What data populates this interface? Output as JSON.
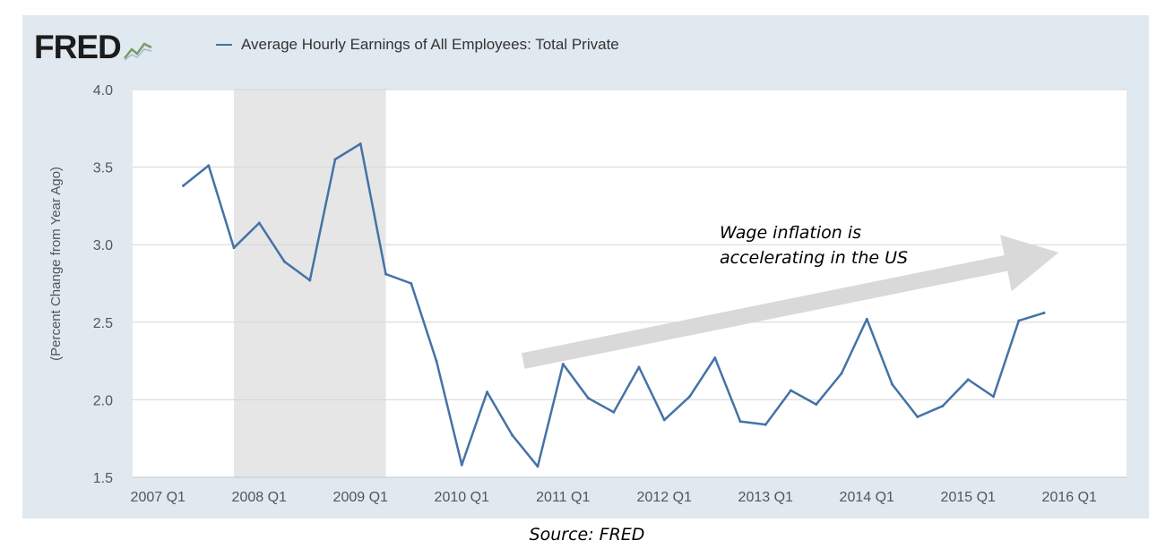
{
  "logo": {
    "text": "FRED",
    "icon": "fred-graph-icon"
  },
  "source": "Source: FRED",
  "chart_data": {
    "type": "line",
    "legend": {
      "placement": "top",
      "entries": [
        "Average Hourly Earnings of All Employees: Total Private"
      ]
    },
    "series": [
      {
        "name": "Average Hourly Earnings of All Employees: Total Private",
        "color": "#4572a7",
        "x": [
          "2007 Q2",
          "2007 Q3",
          "2007 Q4",
          "2008 Q1",
          "2008 Q2",
          "2008 Q3",
          "2008 Q4",
          "2009 Q1",
          "2009 Q2",
          "2009 Q3",
          "2009 Q4",
          "2010 Q1",
          "2010 Q2",
          "2010 Q3",
          "2010 Q4",
          "2011 Q1",
          "2011 Q2",
          "2011 Q3",
          "2011 Q4",
          "2012 Q1",
          "2012 Q2",
          "2012 Q3",
          "2012 Q4",
          "2013 Q1",
          "2013 Q2",
          "2013 Q3",
          "2013 Q4",
          "2014 Q1",
          "2014 Q2",
          "2014 Q3",
          "2014 Q4",
          "2015 Q1",
          "2015 Q2",
          "2015 Q3",
          "2015 Q4"
        ],
        "values": [
          3.38,
          3.51,
          2.98,
          3.14,
          2.89,
          2.77,
          3.55,
          3.65,
          2.81,
          2.75,
          2.25,
          1.58,
          2.05,
          1.77,
          1.57,
          2.23,
          2.01,
          1.92,
          2.21,
          1.87,
          2.02,
          2.27,
          1.86,
          1.84,
          2.06,
          1.97,
          2.17,
          2.52,
          2.1,
          1.89,
          1.96,
          2.13,
          2.02,
          2.51,
          2.56
        ]
      }
    ],
    "x_ticks": [
      "2007 Q1",
      "2008 Q1",
      "2009 Q1",
      "2010 Q1",
      "2011 Q1",
      "2012 Q1",
      "2013 Q1",
      "2014 Q1",
      "2015 Q1",
      "2016 Q1"
    ],
    "y_ticks": [
      "4.0",
      "3.5",
      "3.0",
      "2.5",
      "2.0",
      "1.5"
    ],
    "ylim": [
      1.5,
      4.0
    ],
    "ylabel": "(Percent Change from Year Ago)",
    "xlabel": "",
    "grid": "horizontal",
    "recession_shading": {
      "start": "2007 Q4",
      "end": "2009 Q2",
      "color": "#e6e6e6"
    },
    "annotation": {
      "lines": [
        "Wage inflation is",
        "accelerating in the US"
      ],
      "arrow": {
        "from": [
          "2010 Q3",
          2.25
        ],
        "to": [
          "2016 Q1",
          2.95
        ],
        "color": "#d9d9d9"
      }
    }
  }
}
